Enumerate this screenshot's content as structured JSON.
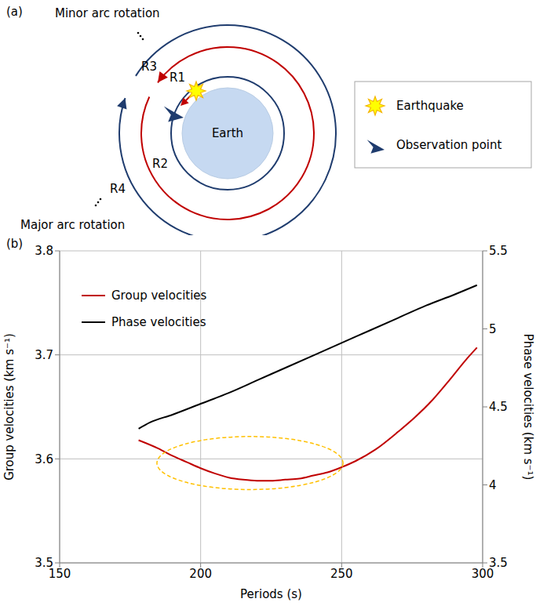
{
  "panel_a": {
    "label": "(a)",
    "minor_arc": "Minor arc rotation",
    "major_arc": "Major arc rotation",
    "R1": "R1",
    "R2": "R2",
    "R3": "R3",
    "R4": "R4",
    "earth": "Earth",
    "legend": [
      {
        "symbol": "earthquake",
        "text": "Earthquake"
      },
      {
        "symbol": "observation",
        "text": "Observation point"
      }
    ]
  },
  "chart_data": {
    "type": "line",
    "label": "(b)",
    "xlabel": "Periods (s)",
    "ylabel": "Group velocities (km s⁻¹)",
    "y2label": "Phase velocities (km s⁻¹)",
    "xlim": [
      150,
      300
    ],
    "xticks": [
      150,
      200,
      250,
      300
    ],
    "ylim": [
      3.5,
      3.8
    ],
    "yticks": [
      3.5,
      3.6,
      3.7,
      3.8
    ],
    "y2lim": [
      3.5,
      5.5
    ],
    "y2ticks": [
      3.5,
      4,
      4.5,
      5,
      5.5
    ],
    "grid": true,
    "legend": "upper left",
    "series": [
      {
        "name": "Group velocities",
        "color": "#c00000",
        "x": [
          178,
          185,
          190,
          195,
          200,
          205,
          210,
          215,
          220,
          225,
          230,
          235,
          240,
          245,
          250,
          255,
          262,
          270,
          276,
          282,
          288,
          294,
          298
        ],
        "values": [
          3.618,
          3.61,
          3.603,
          3.597,
          3.591,
          3.586,
          3.582,
          3.58,
          3.579,
          3.579,
          3.58,
          3.581,
          3.584,
          3.587,
          3.592,
          3.598,
          3.609,
          3.626,
          3.64,
          3.656,
          3.675,
          3.695,
          3.707
        ]
      },
      {
        "name": "Phase velocities",
        "color": "#000000",
        "axis": "y2",
        "x": [
          178,
          182,
          190,
          200,
          210,
          220,
          230,
          240,
          250,
          260,
          270,
          280,
          290,
          298
        ],
        "values": [
          4.36,
          4.4,
          4.45,
          4.52,
          4.59,
          4.67,
          4.75,
          4.83,
          4.91,
          4.99,
          5.07,
          5.15,
          5.22,
          5.28
        ]
      }
    ]
  }
}
